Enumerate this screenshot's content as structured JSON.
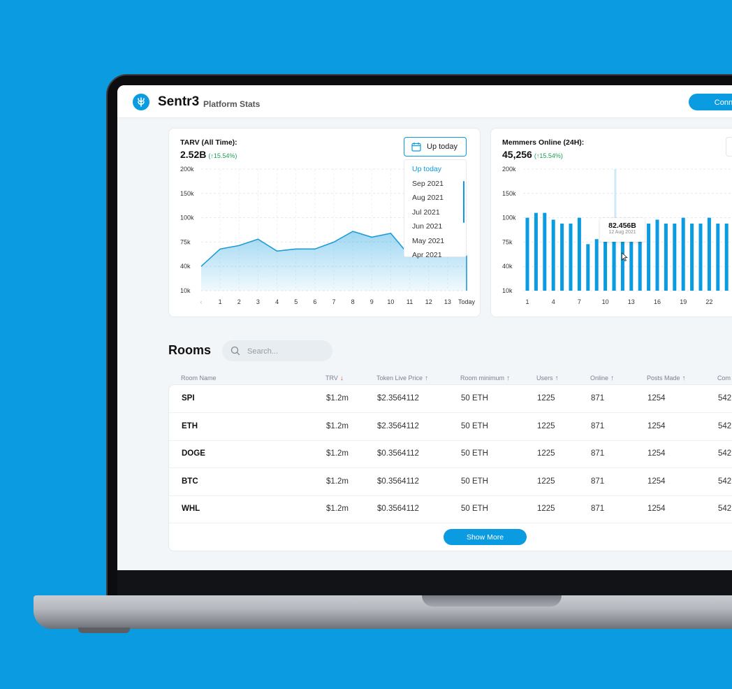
{
  "header": {
    "brand": "Sentr3",
    "subtitle": "Platform Stats",
    "connect_label": "Connect W"
  },
  "tarv_card": {
    "title": "TARV (All Time):",
    "value": "2.52B",
    "delta": "(↑15.54%)",
    "date_button": "Up today",
    "dropdown_options": [
      "Up today",
      "Sep 2021",
      "Aug 2021",
      "Jul 2021",
      "Jun 2021",
      "May 2021",
      "Apr 2021"
    ],
    "selected_option": "Up today"
  },
  "members_card": {
    "title": "Memmers Online (24H):",
    "value": "45,256",
    "delta": "(↑15.54%)",
    "tooltip_value": "82.456B",
    "tooltip_date": "12 Aug 2021"
  },
  "chart_data": [
    {
      "type": "area",
      "title": "TARV (All Time):",
      "y_ticks": [
        "200k",
        "150k",
        "100k",
        "75k",
        "40k",
        "10k"
      ],
      "x_ticks": [
        "1",
        "2",
        "3",
        "4",
        "5",
        "6",
        "7",
        "8",
        "9",
        "10",
        "11",
        "12",
        "13",
        "Today"
      ],
      "x": [
        "",
        "1",
        "2",
        "3",
        "4",
        "5",
        "6",
        "7",
        "8",
        "9",
        "10",
        "11"
      ],
      "values": [
        40,
        65,
        70,
        78,
        62,
        65,
        65,
        75,
        86,
        80,
        84,
        55
      ],
      "color": "#1e9bd6"
    },
    {
      "type": "bar",
      "title": "Memmers Online (24H):",
      "y_ticks": [
        "200k",
        "150k",
        "100k",
        "75k",
        "40k",
        "10k"
      ],
      "x_ticks": [
        "1",
        "4",
        "7",
        "10",
        "13",
        "16",
        "19",
        "22"
      ],
      "values": [
        100,
        110,
        110,
        98,
        94,
        94,
        100,
        72,
        78,
        84,
        82,
        84,
        86,
        92,
        94,
        98,
        94,
        94,
        100,
        94,
        94,
        100,
        94,
        94
      ],
      "highlight_index": 11,
      "color": "#0a9be0"
    }
  ],
  "rooms": {
    "title": "Rooms",
    "search_placeholder": "Search...",
    "columns": [
      {
        "label": "Room Name",
        "sort": ""
      },
      {
        "label": "TRV",
        "sort": "↓"
      },
      {
        "label": "Token Live Price",
        "sort": "↑"
      },
      {
        "label": "Room minimum",
        "sort": "↑"
      },
      {
        "label": "Users",
        "sort": "↑"
      },
      {
        "label": "Online",
        "sort": "↑"
      },
      {
        "label": "Posts Made",
        "sort": "↑"
      },
      {
        "label": "Com",
        "sort": ""
      }
    ],
    "rows": [
      [
        "SPI",
        "$1.2m",
        "$2.3564112",
        "50 ETH",
        "1225",
        "871",
        "1254",
        "542"
      ],
      [
        "ETH",
        "$1.2m",
        "$2.3564112",
        "50 ETH",
        "1225",
        "871",
        "1254",
        "542"
      ],
      [
        "DOGE",
        "$1.2m",
        "$0.3564112",
        "50 ETH",
        "1225",
        "871",
        "1254",
        "542"
      ],
      [
        "BTC",
        "$1.2m",
        "$0.3564112",
        "50 ETH",
        "1225",
        "871",
        "1254",
        "542"
      ],
      [
        "WHL",
        "$1.2m",
        "$0.3564112",
        "50 ETH",
        "1225",
        "871",
        "1254",
        "542"
      ]
    ],
    "show_more": "Show More"
  },
  "colors": {
    "accent": "#0a9be0",
    "positive": "#1f9d55",
    "sort_active": "#e5533d",
    "background": "#0a9be0"
  }
}
